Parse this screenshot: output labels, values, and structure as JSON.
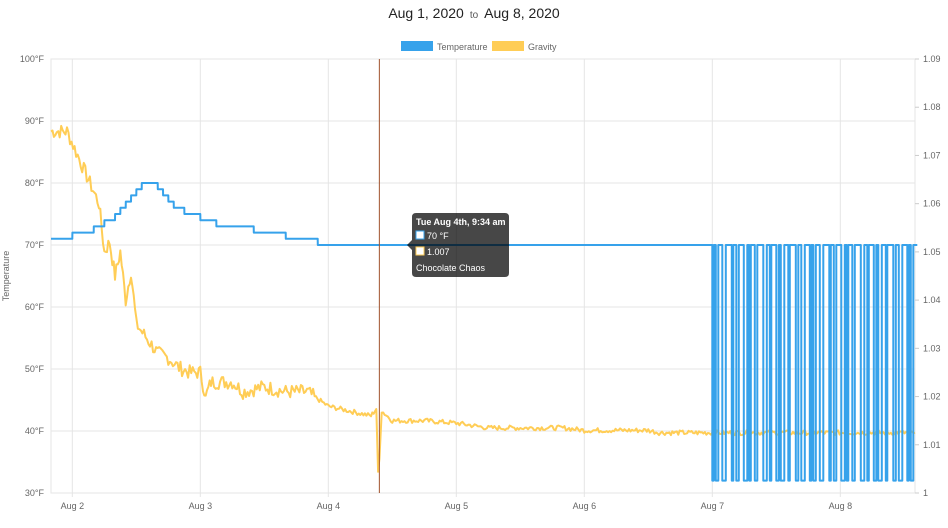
{
  "header": {
    "start_date": "Aug 1, 2020",
    "to_label": "to",
    "end_date": "Aug 8, 2020"
  },
  "chart_data": {
    "type": "line",
    "legend": {
      "position": "top-center",
      "entries": [
        "Temperature",
        "Gravity"
      ]
    },
    "grid": true,
    "y_left": {
      "label": "Temperature",
      "range": [
        30,
        100
      ],
      "unit": "°F",
      "ticks": [
        "100°F",
        "90°F",
        "80°F",
        "70°F",
        "60°F",
        "50°F",
        "40°F",
        "30°F"
      ]
    },
    "y_right": {
      "range": [
        1.0,
        1.09
      ],
      "ticks": [
        "1.09",
        "1.08",
        "1.07",
        "1.06",
        "1.05",
        "1.04",
        "1.03",
        "1.02",
        "1.01",
        "1"
      ]
    },
    "x_ticks": [
      "Aug 2",
      "Aug 3",
      "Aug 4",
      "Aug 5",
      "Aug 6",
      "Aug 7",
      "Aug 8"
    ],
    "x_range": [
      "2020-08-01T20:00",
      "2020-08-08T14:00"
    ],
    "series": [
      {
        "name": "Temperature",
        "axis": "left",
        "color": "#36a2eb",
        "points": [
          [
            "2020-08-01T20:00",
            71
          ],
          [
            "2020-08-02T00:00",
            71
          ],
          [
            "2020-08-02T00:01",
            72
          ],
          [
            "2020-08-02T04:00",
            72
          ],
          [
            "2020-08-02T04:01",
            73
          ],
          [
            "2020-08-02T06:00",
            73
          ],
          [
            "2020-08-02T06:01",
            74
          ],
          [
            "2020-08-02T08:00",
            74
          ],
          [
            "2020-08-02T08:01",
            75
          ],
          [
            "2020-08-02T09:00",
            75
          ],
          [
            "2020-08-02T09:01",
            76
          ],
          [
            "2020-08-02T10:00",
            76
          ],
          [
            "2020-08-02T10:01",
            77
          ],
          [
            "2020-08-02T11:00",
            77
          ],
          [
            "2020-08-02T11:01",
            78
          ],
          [
            "2020-08-02T12:00",
            78
          ],
          [
            "2020-08-02T12:01",
            79
          ],
          [
            "2020-08-02T13:00",
            79
          ],
          [
            "2020-08-02T13:01",
            80
          ],
          [
            "2020-08-02T16:00",
            80
          ],
          [
            "2020-08-02T16:01",
            79
          ],
          [
            "2020-08-02T17:00",
            79
          ],
          [
            "2020-08-02T17:01",
            78
          ],
          [
            "2020-08-02T18:00",
            78
          ],
          [
            "2020-08-02T18:01",
            77
          ],
          [
            "2020-08-02T19:00",
            77
          ],
          [
            "2020-08-02T19:01",
            76
          ],
          [
            "2020-08-02T21:00",
            76
          ],
          [
            "2020-08-02T21:01",
            75
          ],
          [
            "2020-08-03T00:00",
            75
          ],
          [
            "2020-08-03T00:01",
            74
          ],
          [
            "2020-08-03T03:00",
            74
          ],
          [
            "2020-08-03T03:01",
            73
          ],
          [
            "2020-08-03T10:00",
            73
          ],
          [
            "2020-08-03T10:01",
            72
          ],
          [
            "2020-08-03T16:00",
            72
          ],
          [
            "2020-08-03T16:01",
            71
          ],
          [
            "2020-08-03T22:00",
            71
          ],
          [
            "2020-08-03T22:01",
            70
          ],
          [
            "2020-08-07T00:00",
            70
          ]
        ],
        "oscillation": {
          "from": "2020-08-07T00:00",
          "to": "2020-08-08T14:00",
          "high": 70,
          "low": 32
        }
      },
      {
        "name": "Gravity",
        "axis": "right",
        "color": "#ffcd56",
        "points": [
          [
            "2020-08-01T20:00",
            1.075
          ],
          [
            "2020-08-01T23:00",
            1.075
          ],
          [
            "2020-08-02T01:00",
            1.07
          ],
          [
            "2020-08-02T03:00",
            1.065
          ],
          [
            "2020-08-02T05:00",
            1.06
          ],
          [
            "2020-08-02T06:00",
            1.05
          ],
          [
            "2020-08-02T07:00",
            1.052
          ],
          [
            "2020-08-02T08:00",
            1.045
          ],
          [
            "2020-08-02T09:00",
            1.05
          ],
          [
            "2020-08-02T10:00",
            1.04
          ],
          [
            "2020-08-02T11:00",
            1.046
          ],
          [
            "2020-08-02T12:00",
            1.035
          ],
          [
            "2020-08-02T14:00",
            1.032
          ],
          [
            "2020-08-02T16:00",
            1.029
          ],
          [
            "2020-08-02T18:00",
            1.028
          ],
          [
            "2020-08-02T20:00",
            1.026
          ],
          [
            "2020-08-02T22:00",
            1.025
          ],
          [
            "2020-08-03T00:00",
            1.025
          ],
          [
            "2020-08-03T01:00",
            1.02
          ],
          [
            "2020-08-03T02:00",
            1.023
          ],
          [
            "2020-08-03T06:00",
            1.023
          ],
          [
            "2020-08-03T08:00",
            1.021
          ],
          [
            "2020-08-03T12:00",
            1.022
          ],
          [
            "2020-08-03T16:00",
            1.021
          ],
          [
            "2020-08-03T20:00",
            1.021
          ],
          [
            "2020-08-04T00:00",
            1.018
          ],
          [
            "2020-08-04T04:00",
            1.017
          ],
          [
            "2020-08-04T08:00",
            1.016
          ],
          [
            "2020-08-04T09:00",
            1.0175
          ],
          [
            "2020-08-04T09:20",
            1.004
          ],
          [
            "2020-08-04T09:34",
            1.007
          ],
          [
            "2020-08-04T10:00",
            1.017
          ],
          [
            "2020-08-04T12:00",
            1.015
          ],
          [
            "2020-08-04T18:00",
            1.015
          ],
          [
            "2020-08-05T00:00",
            1.0145
          ],
          [
            "2020-08-05T06:00",
            1.0135
          ],
          [
            "2020-08-05T12:00",
            1.0135
          ],
          [
            "2020-08-05T20:00",
            1.0135
          ],
          [
            "2020-08-06T00:00",
            1.013
          ],
          [
            "2020-08-06T12:00",
            1.013
          ],
          [
            "2020-08-06T14:00",
            1.0125
          ],
          [
            "2020-08-07T00:00",
            1.0125
          ],
          [
            "2020-08-07T12:00",
            1.0125
          ],
          [
            "2020-08-08T14:00",
            1.0125
          ]
        ]
      }
    ],
    "crosshair": {
      "x": "2020-08-04T09:34"
    },
    "tooltip": {
      "title": "Tue Aug 4th, 9:34 am",
      "temperature": "70 °F",
      "gravity": "1.007",
      "label": "Chocolate Chaos"
    }
  }
}
